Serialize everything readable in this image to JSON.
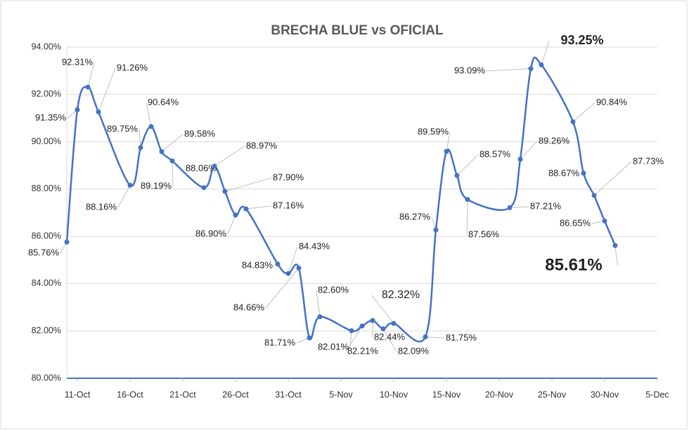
{
  "chart_data": {
    "type": "line",
    "title": "BRECHA BLUE vs OFICIAL",
    "x": [
      "10-Oct",
      "11-Oct",
      "12-Oct",
      "13-Oct",
      "16-Oct",
      "17-Oct",
      "18-Oct",
      "19-Oct",
      "20-Oct",
      "23-Oct",
      "24-Oct",
      "25-Oct",
      "26-Oct",
      "27-Oct",
      "30-Oct",
      "31-Oct",
      "1-Nov",
      "2-Nov",
      "3-Nov",
      "6-Nov",
      "7-Nov",
      "8-Nov",
      "9-Nov",
      "10-Nov",
      "13-Nov",
      "14-Nov",
      "15-Nov",
      "16-Nov",
      "17-Nov",
      "21-Nov",
      "22-Nov",
      "23-Nov",
      "24-Nov",
      "27-Nov",
      "28-Nov",
      "29-Nov",
      "30-Nov",
      "1-Dec"
    ],
    "series": [
      {
        "name": "Brecha",
        "color": "#4472c4",
        "values": [
          85.76,
          91.35,
          92.31,
          91.26,
          88.16,
          89.75,
          90.64,
          89.58,
          89.19,
          88.06,
          88.97,
          87.9,
          86.9,
          87.16,
          84.83,
          84.43,
          84.66,
          81.71,
          82.6,
          82.01,
          82.21,
          82.44,
          82.09,
          82.32,
          81.75,
          86.27,
          89.59,
          88.57,
          87.56,
          87.21,
          89.26,
          93.09,
          93.25,
          90.84,
          88.67,
          87.73,
          86.65,
          85.61
        ],
        "value_labels": [
          "85.76%",
          "91.35%",
          "92.31%",
          "91.26%",
          "88.16%",
          "89.75%",
          "90.64%",
          "89.58%",
          "89.19%",
          "88.06%",
          "88.97%",
          "87.90%",
          "86.90%",
          "87.16%",
          "84.83%",
          "84.43%",
          "84.66%",
          "81.71%",
          "82.60%",
          "82.01%",
          "82.21%",
          "82.44%",
          "82.09%",
          "82.32%",
          "81.75%",
          "86.27%",
          "89.59%",
          "88.57%",
          "87.56%",
          "87.21%",
          "89.26%",
          "93.09%",
          "93.25%",
          "90.84%",
          "88.67%",
          "87.73%",
          "86.65%",
          "85.61%"
        ]
      }
    ],
    "xlim": [
      "10-Oct",
      "5-Dec"
    ],
    "xticks": [
      "11-Oct",
      "16-Oct",
      "21-Oct",
      "26-Oct",
      "31-Oct",
      "5-Nov",
      "10-Nov",
      "15-Nov",
      "20-Nov",
      "25-Nov",
      "30-Nov",
      "5-Dec"
    ],
    "ylim": [
      80,
      94
    ],
    "yticks": [
      {
        "value": 80,
        "label": "80.00%"
      },
      {
        "value": 82,
        "label": "82.00%"
      },
      {
        "value": 84,
        "label": "84.00%"
      },
      {
        "value": 86,
        "label": "86.00%"
      },
      {
        "value": 88,
        "label": "88.00%"
      },
      {
        "value": 90,
        "label": "90.00%"
      },
      {
        "value": 92,
        "label": "92.00%"
      },
      {
        "value": 94,
        "label": "94.00%"
      }
    ],
    "grid": true
  }
}
